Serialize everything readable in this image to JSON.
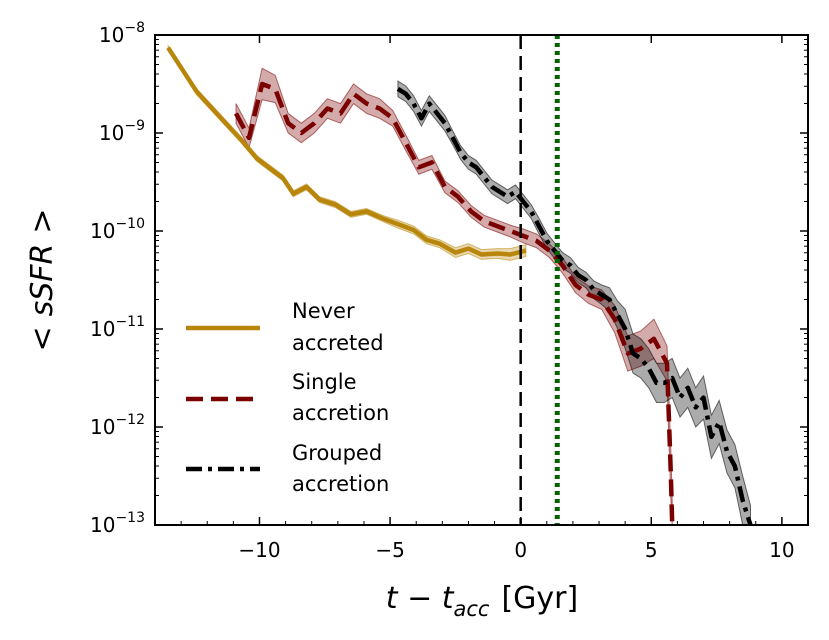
{
  "chart_data": {
    "type": "line",
    "title": "",
    "xlabel": "t − t_acc [Gyr]",
    "xlabel_parts": {
      "main": "t − t",
      "sub": "acc",
      "unit": "[Gyr]"
    },
    "ylabel": "< sSFR >",
    "ylabel_parts": {
      "lt": "<",
      "main": "sSFR",
      "gt": ">"
    },
    "xlim": [
      -14,
      11
    ],
    "ylim_log10": [
      -13,
      -8
    ],
    "yscale": "log",
    "x_ticks": [
      -10,
      -5,
      0,
      5,
      10
    ],
    "x_tick_labels": [
      "−10",
      "−5",
      "0",
      "5",
      "10"
    ],
    "y_ticks_exp": [
      -13,
      -12,
      -11,
      -10,
      -9,
      -8
    ],
    "y_tick_base": "10",
    "y_tick_exps": [
      "−13",
      "−12",
      "−11",
      "−10",
      "−9",
      "−8"
    ],
    "grid": false,
    "legend_position": "lower-left",
    "vlines": [
      {
        "name": "accretion-time",
        "x": 0,
        "color": "#000000",
        "style": "dashed"
      },
      {
        "name": "reference-time",
        "x": 1.4,
        "color": "#006400",
        "style": "dotted"
      }
    ],
    "series": [
      {
        "name": "Never accreted",
        "legend": [
          "Never",
          "accreted"
        ],
        "color": "#b8860b",
        "style": "solid",
        "x": [
          -13.5,
          -12.4,
          -11.5,
          -10.7,
          -10.1,
          -9.5,
          -9.1,
          -8.7,
          -8.2,
          -7.7,
          -7.1,
          -6.5,
          -5.9,
          -5.3,
          -4.7,
          -4.1,
          -3.6,
          -3.1,
          -2.5,
          -2.0,
          -1.5,
          -0.9,
          -0.4,
          0.2
        ],
        "y": [
          -8.13,
          -8.58,
          -8.84,
          -9.07,
          -9.26,
          -9.38,
          -9.46,
          -9.62,
          -9.55,
          -9.68,
          -9.73,
          -9.83,
          -9.8,
          -9.87,
          -9.93,
          -9.99,
          -10.09,
          -10.13,
          -10.22,
          -10.18,
          -10.24,
          -10.23,
          -10.24,
          -10.2
        ],
        "err": [
          0.02,
          0.03,
          0.03,
          0.03,
          0.03,
          0.03,
          0.03,
          0.03,
          0.03,
          0.03,
          0.03,
          0.03,
          0.03,
          0.03,
          0.04,
          0.04,
          0.04,
          0.04,
          0.05,
          0.05,
          0.05,
          0.05,
          0.06,
          0.06
        ]
      },
      {
        "name": "Single accretion",
        "legend": [
          "Single",
          "accretion"
        ],
        "color": "#7b0000",
        "style": "dashed",
        "x": [
          -10.9,
          -10.4,
          -9.9,
          -9.4,
          -8.9,
          -8.4,
          -7.9,
          -7.4,
          -6.9,
          -6.4,
          -5.9,
          -5.4,
          -4.9,
          -4.4,
          -3.9,
          -3.4,
          -2.9,
          -2.4,
          -1.9,
          -1.4,
          -0.9,
          -0.4,
          0.1,
          0.6,
          1.1,
          1.6,
          2.1,
          2.6,
          3.1,
          3.6,
          4.1,
          4.6,
          5.1,
          5.6,
          5.75,
          5.8
        ],
        "y": [
          -8.8,
          -9.05,
          -8.5,
          -8.55,
          -8.9,
          -9.0,
          -8.9,
          -8.75,
          -8.8,
          -8.6,
          -8.7,
          -8.75,
          -8.85,
          -9.1,
          -9.35,
          -9.3,
          -9.55,
          -9.65,
          -9.8,
          -9.9,
          -9.95,
          -10.0,
          -10.05,
          -10.1,
          -10.2,
          -10.35,
          -10.55,
          -10.65,
          -10.7,
          -10.9,
          -11.25,
          -11.2,
          -11.1,
          -11.35,
          -12.5,
          -13.0
        ],
        "err": [
          0.1,
          0.1,
          0.16,
          0.14,
          0.1,
          0.1,
          0.1,
          0.1,
          0.1,
          0.1,
          0.1,
          0.1,
          0.08,
          0.08,
          0.07,
          0.07,
          0.06,
          0.06,
          0.06,
          0.06,
          0.06,
          0.06,
          0.07,
          0.07,
          0.07,
          0.08,
          0.08,
          0.09,
          0.1,
          0.14,
          0.18,
          0.18,
          0.2,
          0.18,
          0.25,
          0.25
        ]
      },
      {
        "name": "Grouped accretion",
        "legend": [
          "Grouped",
          "accretion"
        ],
        "color": "#000000",
        "style": "dashdot",
        "x": [
          -4.7,
          -4.4,
          -4.1,
          -3.8,
          -3.5,
          -3.2,
          -2.9,
          -2.6,
          -2.3,
          -2.0,
          -1.7,
          -1.4,
          -1.1,
          -0.8,
          -0.5,
          -0.2,
          0.1,
          0.4,
          0.7,
          1.0,
          1.3,
          1.6,
          1.9,
          2.2,
          2.5,
          2.8,
          3.1,
          3.4,
          3.7,
          4.0,
          4.3,
          4.6,
          4.9,
          5.2,
          5.5,
          5.8,
          6.1,
          6.4,
          6.7,
          7.0,
          7.3,
          7.6,
          7.9,
          8.2,
          8.5,
          8.8
        ],
        "y": [
          -8.55,
          -8.6,
          -8.7,
          -8.85,
          -8.7,
          -8.8,
          -8.9,
          -9.05,
          -9.2,
          -9.3,
          -9.35,
          -9.45,
          -9.55,
          -9.6,
          -9.65,
          -9.6,
          -9.7,
          -9.8,
          -9.95,
          -10.1,
          -10.2,
          -10.3,
          -10.35,
          -10.45,
          -10.5,
          -10.6,
          -10.65,
          -10.7,
          -10.85,
          -11.0,
          -11.25,
          -11.3,
          -11.4,
          -11.55,
          -11.55,
          -11.5,
          -11.7,
          -11.6,
          -11.8,
          -11.7,
          -12.1,
          -11.95,
          -12.25,
          -12.4,
          -12.75,
          -13.05
        ],
        "err": [
          0.08,
          0.08,
          0.08,
          0.08,
          0.08,
          0.08,
          0.08,
          0.07,
          0.07,
          0.07,
          0.07,
          0.07,
          0.07,
          0.07,
          0.07,
          0.07,
          0.07,
          0.07,
          0.08,
          0.08,
          0.08,
          0.08,
          0.08,
          0.08,
          0.08,
          0.09,
          0.1,
          0.12,
          0.14,
          0.2,
          0.2,
          0.2,
          0.2,
          0.2,
          0.2,
          0.2,
          0.2,
          0.2,
          0.2,
          0.22,
          0.22,
          0.22,
          0.22,
          0.22,
          0.25,
          0.25
        ]
      }
    ]
  }
}
